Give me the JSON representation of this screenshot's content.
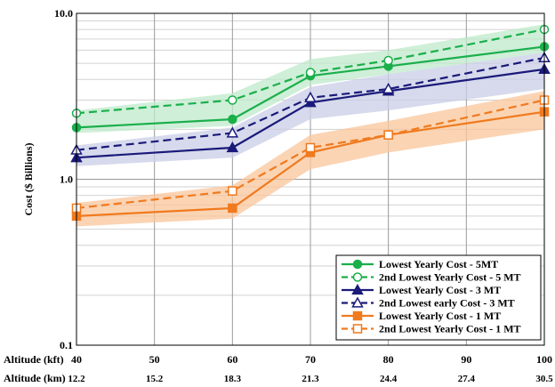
{
  "chart_data": {
    "type": "line",
    "y_scale": "log",
    "ylim": [
      0.1,
      10.0
    ],
    "xlim": [
      40,
      100
    ],
    "grid": true,
    "legend_position": "bottom-right",
    "ylabel": "Cost ($ Billions)",
    "x_axis_rows": [
      {
        "label": "Altitude (kft)",
        "ticks": [
          "40",
          "50",
          "60",
          "70",
          "80",
          "90",
          "100"
        ]
      },
      {
        "label": "Altitude (km)",
        "ticks": [
          "12.2",
          "15.2",
          "18.3",
          "21.3",
          "24.4",
          "27.4",
          "30.5"
        ]
      }
    ],
    "y_ticks": [
      "0.1",
      "1.0",
      "10.0"
    ],
    "x_values": [
      40,
      60,
      70,
      80,
      100
    ],
    "series": [
      {
        "name": "Lowest Yearly Cost - 5MT",
        "color": "#1aaf4b",
        "dash": false,
        "marker": "circle-filled",
        "values": [
          2.05,
          2.3,
          4.2,
          4.8,
          6.3
        ]
      },
      {
        "name": "2nd Lowest Yearly Cost - 5 MT",
        "color": "#1aaf4b",
        "dash": true,
        "marker": "circle-open",
        "values": [
          2.5,
          3.0,
          4.4,
          5.2,
          8.0
        ]
      },
      {
        "name": "Lowest Yearly Cost - 3 MT",
        "color": "#1a1a7a",
        "dash": false,
        "marker": "triangle-filled",
        "values": [
          1.35,
          1.55,
          2.9,
          3.4,
          4.6
        ]
      },
      {
        "name": "2nd Lowest early Cost - 3 MT",
        "color": "#1a1a7a",
        "dash": true,
        "marker": "triangle-open",
        "values": [
          1.5,
          1.9,
          3.1,
          3.5,
          5.4
        ]
      },
      {
        "name": "Lowest Yearly Cost - 1 MT",
        "color": "#f07a1e",
        "dash": false,
        "marker": "square-filled",
        "values": [
          0.6,
          0.67,
          1.45,
          1.85,
          2.55
        ]
      },
      {
        "name": "2nd Lowest Yearly Cost - 1 MT",
        "color": "#f07a1e",
        "dash": true,
        "marker": "square-open",
        "values": [
          0.67,
          0.85,
          1.55,
          1.85,
          3.0
        ]
      }
    ],
    "bands": [
      {
        "color": "#bfe9cb",
        "x": [
          40,
          60,
          70,
          80,
          100
        ],
        "low": [
          1.9,
          2.1,
          3.7,
          4.3,
          5.8
        ],
        "high": [
          2.6,
          3.3,
          5.3,
          6.0,
          8.6
        ]
      },
      {
        "color": "#c9cde6",
        "x": [
          40,
          60,
          70,
          80,
          100
        ],
        "low": [
          1.2,
          1.35,
          2.3,
          2.6,
          3.5
        ],
        "high": [
          1.6,
          2.05,
          3.6,
          4.3,
          5.8
        ]
      },
      {
        "color": "#f9c59b",
        "x": [
          40,
          60,
          70,
          80,
          100
        ],
        "low": [
          0.52,
          0.58,
          1.15,
          1.45,
          2.0
        ],
        "high": [
          0.72,
          0.92,
          1.85,
          2.25,
          3.4
        ]
      }
    ]
  }
}
